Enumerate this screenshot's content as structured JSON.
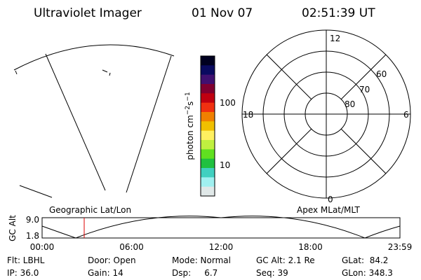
{
  "header": {
    "title": "Ultraviolet Imager",
    "date": "01 Nov 07",
    "time": "02:51:39 UT"
  },
  "colorbar": {
    "label": [
      "photon cm",
      "−2",
      "s",
      "−1"
    ],
    "ticks": [
      "100",
      "10"
    ]
  },
  "polar": {
    "mlt_labels": [
      "12",
      "18",
      "6",
      "0"
    ],
    "mlat_labels": [
      "60",
      "70",
      "80"
    ]
  },
  "panels": {
    "left_label": "Geographic Lat/Lon",
    "right_label": "Apex MLat/MLT"
  },
  "altitude": {
    "ylabel": "GC Alt",
    "yticks": [
      "9.0",
      "1.8"
    ],
    "xticks": [
      "00:00",
      "06:00",
      "12:00",
      "18:00",
      "23:59"
    ]
  },
  "info": [
    [
      "Flt: LBHL",
      "Door: Open",
      "Mode: Normal",
      "GC Alt: 2.1 Re",
      "GLat:  84.2"
    ],
    [
      "IP: 36.0",
      "Gain: 14",
      "Dsp:     6.7",
      "Seq: 39",
      "GLon: 348.3"
    ]
  ]
}
